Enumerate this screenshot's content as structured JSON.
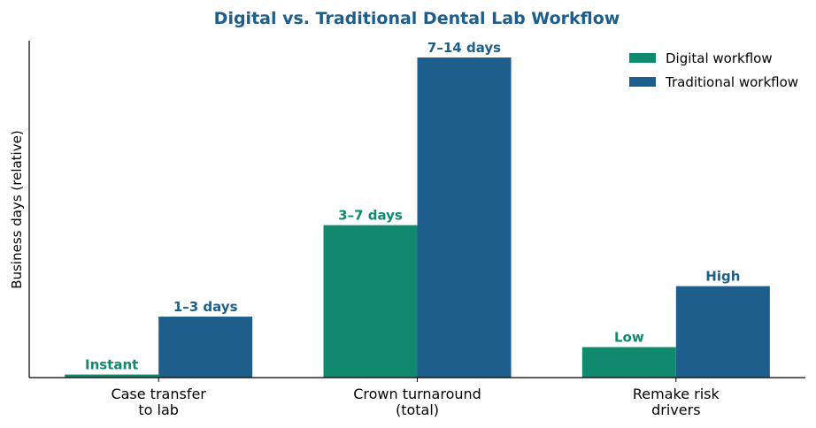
{
  "colors": {
    "digital": "#0f8a6e",
    "traditional": "#1d5e8a",
    "title": "#1d5e8a"
  },
  "chart_data": {
    "type": "bar",
    "title": "Digital vs. Traditional Dental Lab Workflow",
    "xlabel": "",
    "ylabel": "Business days (relative)",
    "categories": [
      [
        "Case transfer",
        "to lab"
      ],
      [
        "Crown turnaround",
        "(total)"
      ],
      [
        "Remake risk",
        "drivers"
      ]
    ],
    "ylim": [
      0,
      10.5
    ],
    "series": [
      {
        "name": "Digital workflow",
        "values": [
          0.1,
          5,
          1
        ],
        "labels": [
          "Instant",
          "3–7 days",
          "Low"
        ]
      },
      {
        "name": "Traditional workflow",
        "values": [
          2,
          10.5,
          3
        ],
        "labels": [
          "1–3 days",
          "7–14 days",
          "High"
        ]
      }
    ],
    "legend_position": "top-right",
    "grid": false
  }
}
